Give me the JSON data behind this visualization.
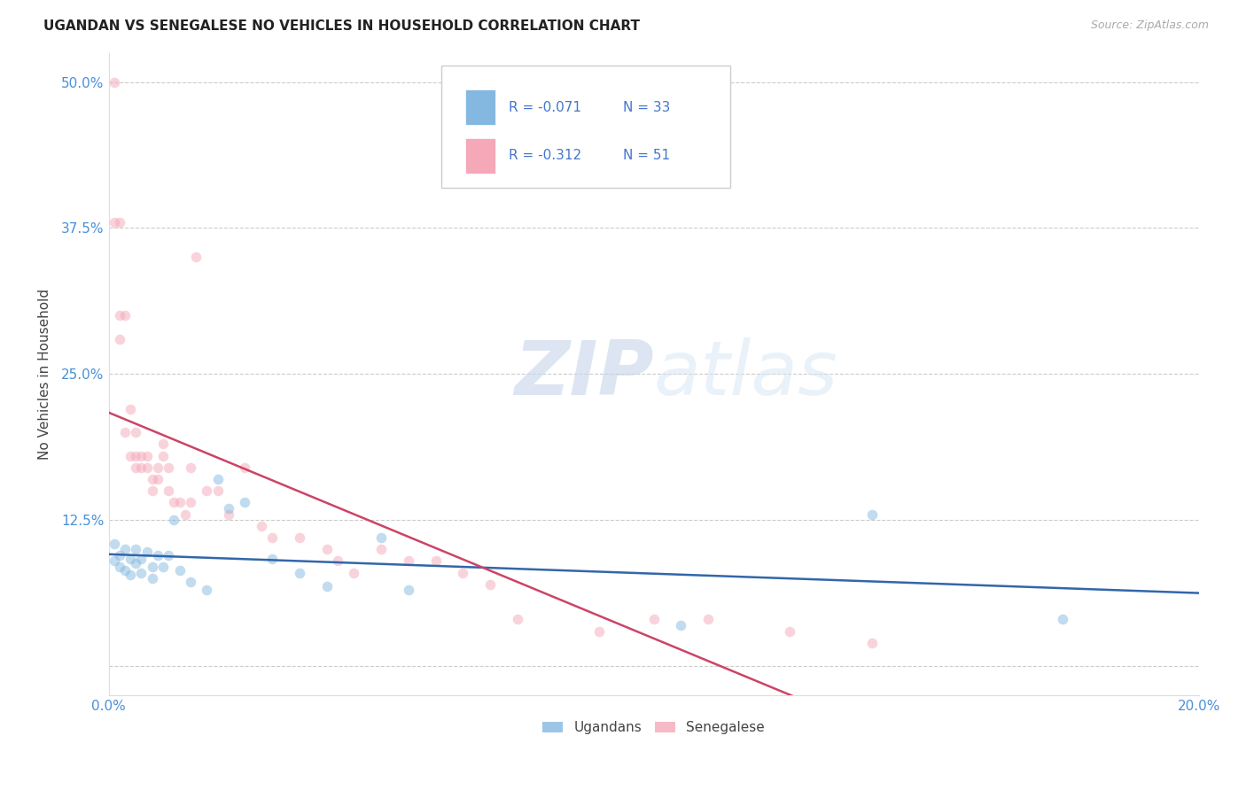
{
  "title": "UGANDAN VS SENEGALESE NO VEHICLES IN HOUSEHOLD CORRELATION CHART",
  "source": "Source: ZipAtlas.com",
  "ylabel": "No Vehicles in Household",
  "watermark_zip": "ZIP",
  "watermark_atlas": "atlas",
  "x_min": 0.0,
  "x_max": 0.2,
  "y_min": -0.025,
  "y_max": 0.525,
  "y_ticks": [
    0.0,
    0.125,
    0.25,
    0.375,
    0.5
  ],
  "y_tick_labels": [
    "",
    "12.5%",
    "25.0%",
    "37.5%",
    "50.0%"
  ],
  "x_ticks": [
    0.0,
    0.05,
    0.1,
    0.15,
    0.2
  ],
  "x_tick_labels": [
    "0.0%",
    "",
    "",
    "",
    "20.0%"
  ],
  "ugandan_color": "#85b8e0",
  "senegalese_color": "#f4a8b8",
  "ugandan_line_color": "#3366aa",
  "senegalese_line_color": "#cc4466",
  "legend_R_ugandan": "R = -0.071",
  "legend_N_ugandan": "N = 33",
  "legend_R_senegalese": "R = -0.312",
  "legend_N_senegalese": "N = 51",
  "ugandan_x": [
    0.001,
    0.001,
    0.002,
    0.002,
    0.003,
    0.003,
    0.004,
    0.004,
    0.005,
    0.005,
    0.006,
    0.006,
    0.007,
    0.008,
    0.008,
    0.009,
    0.01,
    0.011,
    0.012,
    0.013,
    0.015,
    0.018,
    0.02,
    0.022,
    0.025,
    0.03,
    0.035,
    0.04,
    0.05,
    0.055,
    0.105,
    0.14,
    0.175
  ],
  "ugandan_y": [
    0.105,
    0.09,
    0.095,
    0.085,
    0.1,
    0.082,
    0.092,
    0.078,
    0.1,
    0.088,
    0.092,
    0.08,
    0.098,
    0.085,
    0.075,
    0.095,
    0.085,
    0.095,
    0.125,
    0.082,
    0.072,
    0.065,
    0.16,
    0.135,
    0.14,
    0.092,
    0.08,
    0.068,
    0.11,
    0.065,
    0.035,
    0.13,
    0.04
  ],
  "senegalese_x": [
    0.001,
    0.001,
    0.002,
    0.002,
    0.002,
    0.003,
    0.003,
    0.004,
    0.004,
    0.005,
    0.005,
    0.005,
    0.006,
    0.006,
    0.007,
    0.007,
    0.008,
    0.008,
    0.009,
    0.009,
    0.01,
    0.01,
    0.011,
    0.011,
    0.012,
    0.013,
    0.014,
    0.015,
    0.015,
    0.016,
    0.018,
    0.02,
    0.022,
    0.025,
    0.028,
    0.03,
    0.035,
    0.04,
    0.042,
    0.045,
    0.05,
    0.055,
    0.06,
    0.065,
    0.07,
    0.075,
    0.09,
    0.1,
    0.11,
    0.125,
    0.14
  ],
  "senegalese_y": [
    0.5,
    0.38,
    0.38,
    0.3,
    0.28,
    0.3,
    0.2,
    0.22,
    0.18,
    0.2,
    0.18,
    0.17,
    0.18,
    0.17,
    0.18,
    0.17,
    0.16,
    0.15,
    0.17,
    0.16,
    0.19,
    0.18,
    0.17,
    0.15,
    0.14,
    0.14,
    0.13,
    0.17,
    0.14,
    0.35,
    0.15,
    0.15,
    0.13,
    0.17,
    0.12,
    0.11,
    0.11,
    0.1,
    0.09,
    0.08,
    0.1,
    0.09,
    0.09,
    0.08,
    0.07,
    0.04,
    0.03,
    0.04,
    0.04,
    0.03,
    0.02
  ],
  "background_color": "#ffffff",
  "grid_color": "#cccccc",
  "title_color": "#222222",
  "axis_label_color": "#4a90d9",
  "marker_size": 70,
  "marker_alpha": 0.5,
  "line_width": 1.8
}
